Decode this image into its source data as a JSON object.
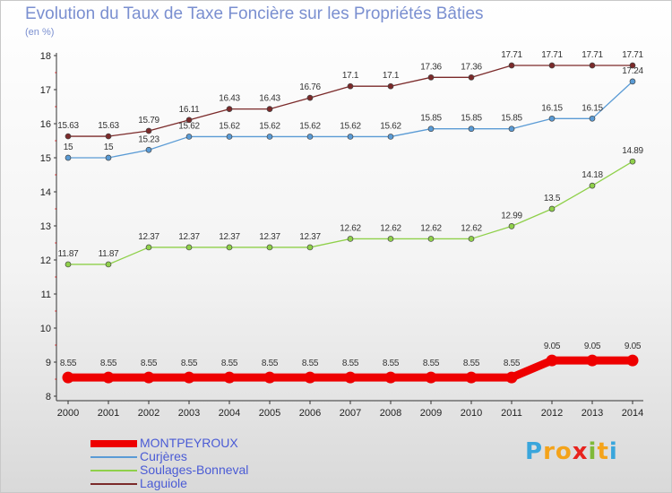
{
  "title": "Evolution du Taux de Taxe Foncière sur les Propriétés Bâties",
  "subtitle": "(en %)",
  "logo": {
    "letters": [
      "P",
      "r",
      "o",
      "x",
      "i",
      "t",
      "i"
    ],
    "colors": [
      "#3aa6dc",
      "#f4a31a",
      "#f4a31a",
      "#e8231e",
      "#7fb93a",
      "#f4a31a",
      "#3aa6dc"
    ]
  },
  "chart_data": {
    "type": "line",
    "title": "Evolution du Taux de Taxe Foncière sur les Propriétés Bâties",
    "ylabel": "(en %)",
    "xlabel": "",
    "ylim": [
      8,
      18
    ],
    "yticks": [
      8,
      9,
      10,
      11,
      12,
      13,
      14,
      15,
      16,
      17,
      18
    ],
    "x": [
      "2000",
      "2001",
      "2002",
      "2003",
      "2004",
      "2005",
      "2006",
      "2007",
      "2008",
      "2009",
      "2010",
      "2011",
      "2012",
      "2013",
      "2014"
    ],
    "grid": false,
    "legend_position": "bottom-left",
    "series": [
      {
        "name": "MONTPEYROUX",
        "color": "#ee0000",
        "emphasis": true,
        "values": [
          8.55,
          8.55,
          8.55,
          8.55,
          8.55,
          8.55,
          8.55,
          8.55,
          8.55,
          8.55,
          8.55,
          8.55,
          9.05,
          9.05,
          9.05
        ],
        "labels": [
          "8.55",
          "8.55",
          "8.55",
          "8.55",
          "8.55",
          "8.55",
          "8.55",
          "8.55",
          "8.55",
          "8.55",
          "8.55",
          "8.55",
          "9.05",
          "9.05",
          "9.05"
        ]
      },
      {
        "name": "Curjères",
        "color": "#5a9bd5",
        "values": [
          15,
          15,
          15.23,
          15.62,
          15.62,
          15.62,
          15.62,
          15.62,
          15.62,
          15.85,
          15.85,
          15.85,
          16.15,
          16.15,
          17.24
        ],
        "labels": [
          "15",
          "15",
          "15.23",
          "15.62",
          "15.62",
          "15.62",
          "15.62",
          "15.62",
          "15.62",
          "15.85",
          "15.85",
          "15.85",
          "16.15",
          "16.15",
          "17.24"
        ]
      },
      {
        "name": "Soulages-Bonneval",
        "color": "#8fd04a",
        "values": [
          11.87,
          11.87,
          12.37,
          12.37,
          12.37,
          12.37,
          12.37,
          12.62,
          12.62,
          12.62,
          12.62,
          12.99,
          13.5,
          14.18,
          14.89
        ],
        "labels": [
          "11.87",
          "11.87",
          "12.37",
          "12.37",
          "12.37",
          "12.37",
          "12.37",
          "12.62",
          "12.62",
          "12.62",
          "12.62",
          "12.99",
          "13.5",
          "14.18",
          "14.89"
        ]
      },
      {
        "name": "Laguiole",
        "color": "#7b2a2a",
        "values": [
          15.63,
          15.63,
          15.79,
          16.11,
          16.43,
          16.43,
          16.76,
          17.1,
          17.1,
          17.36,
          17.36,
          17.71,
          17.71,
          17.71,
          17.71
        ],
        "labels": [
          "15.63",
          "15.63",
          "15.79",
          "16.11",
          "16.43",
          "16.43",
          "16.76",
          "17.1",
          "17.1",
          "17.36",
          "17.36",
          "17.71",
          "17.71",
          "17.71",
          "17.71"
        ]
      }
    ]
  }
}
